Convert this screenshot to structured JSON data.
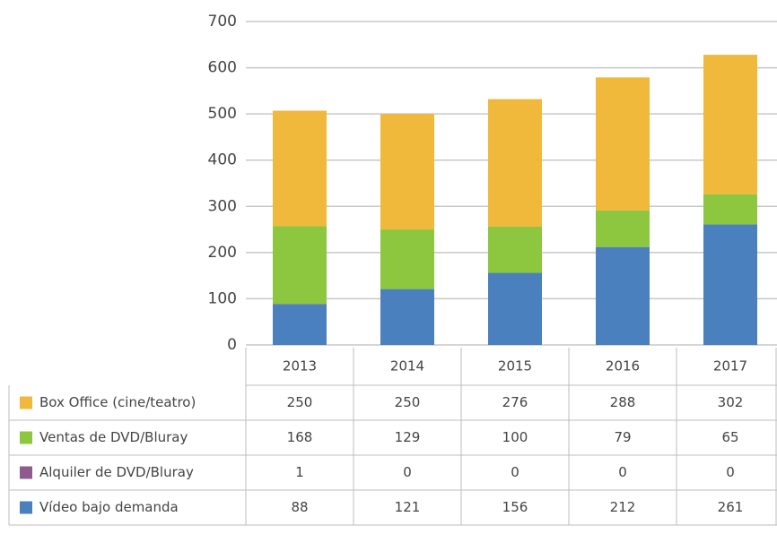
{
  "chart_data": {
    "type": "stacked_bar",
    "categories": [
      "2013",
      "2014",
      "2015",
      "2016",
      "2017"
    ],
    "series": [
      {
        "name": "Box Office (cine/teatro)",
        "color": "#f0b93b",
        "values": [
          250,
          250,
          276,
          288,
          302
        ]
      },
      {
        "name": "Ventas de DVD/Bluray",
        "color": "#8dc63f",
        "values": [
          168,
          129,
          100,
          79,
          65
        ]
      },
      {
        "name": "Alquiler de DVD/Bluray",
        "color": "#8e5b8e",
        "values": [
          1,
          0,
          0,
          0,
          0
        ]
      },
      {
        "name": "Vídeo bajo demanda",
        "color": "#4a80bd",
        "values": [
          88,
          121,
          156,
          212,
          261
        ]
      }
    ],
    "ylim": [
      0,
      700
    ],
    "yticks": [
      0,
      100,
      200,
      300,
      400,
      500,
      600,
      700
    ],
    "grid": true
  }
}
